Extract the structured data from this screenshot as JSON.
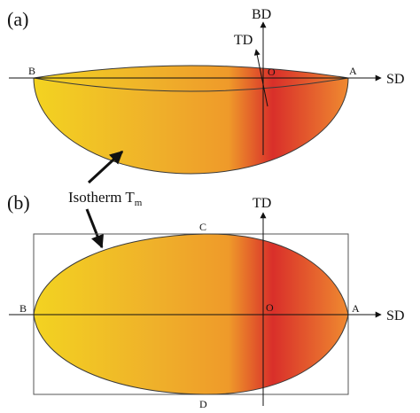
{
  "figure": {
    "panel_a": {
      "label": "(a)",
      "point_b": "B",
      "point_o": "O",
      "point_a": "A",
      "axis_sd": "SD",
      "axis_bd": "BD",
      "axis_td": "TD"
    },
    "panel_b": {
      "label": "(b)",
      "point_b": "B",
      "point_o": "O",
      "point_a": "A",
      "point_c": "C",
      "point_d": "D",
      "axis_sd": "SD",
      "axis_td": "TD"
    },
    "isotherm": {
      "label": "Isotherm T",
      "subscript": "m"
    },
    "colors": {
      "gradient_left": "#f3d321",
      "gradient_mid": "#ef9a2a",
      "gradient_hot": "#d92f2a",
      "gradient_right": "#ef8a30",
      "outline": "#3a3a3a"
    }
  }
}
